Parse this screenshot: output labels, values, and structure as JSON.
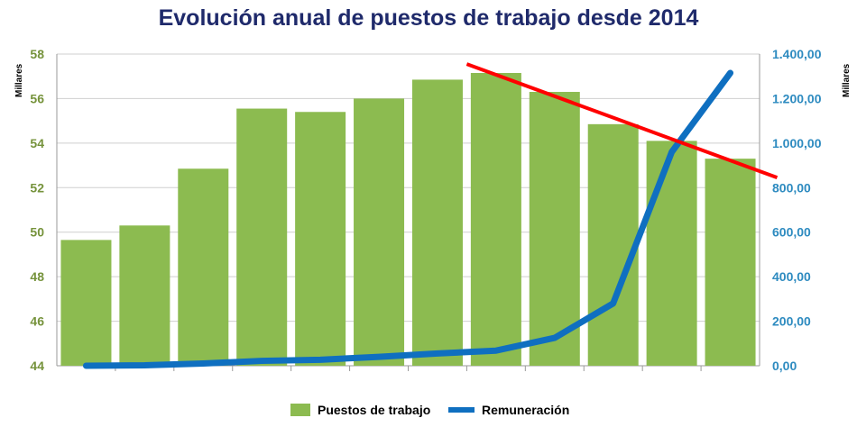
{
  "chart_data": {
    "type": "bar",
    "title": "Evolución anual de puestos de trabajo desde 2014",
    "left_axis": {
      "unit_label": "Millares",
      "ylim": [
        44,
        58
      ],
      "ticks": [
        44,
        46,
        48,
        50,
        52,
        54,
        56,
        58
      ],
      "tick_labels": [
        "44",
        "46",
        "48",
        "50",
        "52",
        "54",
        "56",
        "58"
      ]
    },
    "right_axis": {
      "unit_label": "Millares",
      "ylim": [
        0,
        1400
      ],
      "ticks": [
        0,
        200,
        400,
        600,
        800,
        1000,
        1200,
        1400
      ],
      "tick_labels": [
        "0,00",
        "200,00",
        "400,00",
        "600,00",
        "800,00",
        "1.000,00",
        "1.200,00",
        "1.400,00"
      ]
    },
    "series": [
      {
        "name": "Puestos de trabajo",
        "type": "bar",
        "axis": "left",
        "color": "#8cbb50",
        "values": [
          49.65,
          50.3,
          52.85,
          55.55,
          55.4,
          56.0,
          56.85,
          57.15,
          56.3,
          54.85,
          54.1,
          53.3
        ]
      },
      {
        "name": "Remuneración",
        "type": "line",
        "axis": "right",
        "color": "#0f6fc0",
        "values": [
          0,
          2,
          10,
          22,
          27,
          40,
          55,
          68,
          125,
          280,
          960,
          1315
        ]
      }
    ],
    "trend_line": {
      "color": "#ff0000",
      "axis": "left",
      "from": {
        "category": 7.0,
        "value": 57.55
      },
      "to": {
        "category": 12.3,
        "value": 52.45
      }
    },
    "grid": true,
    "legend": "bottom"
  }
}
